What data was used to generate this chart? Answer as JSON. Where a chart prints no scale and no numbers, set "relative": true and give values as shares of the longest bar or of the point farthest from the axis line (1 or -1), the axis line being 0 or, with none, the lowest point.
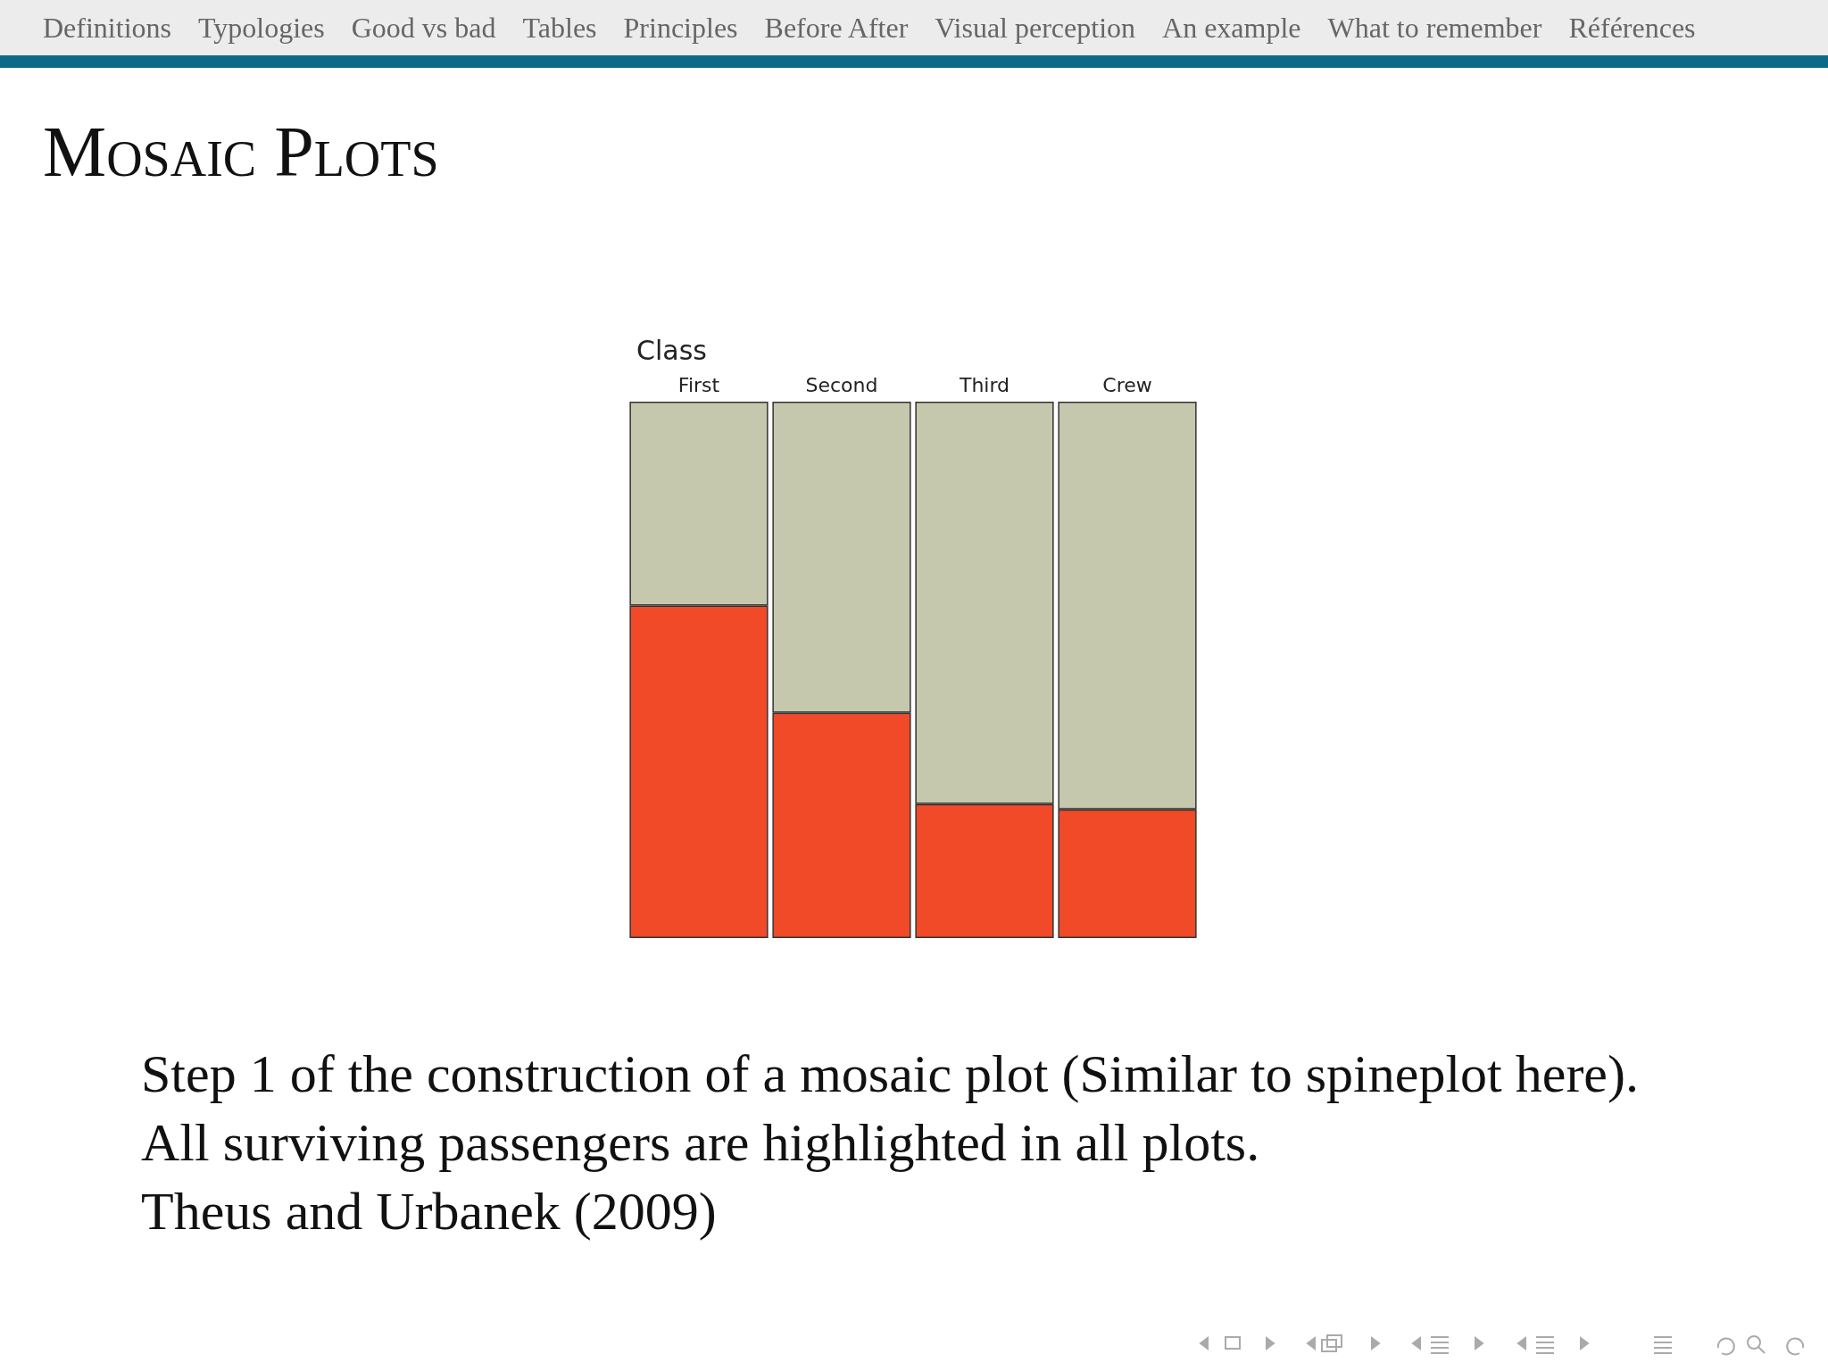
{
  "chart_data": {
    "type": "bar",
    "title": "Mosaic Plots",
    "xlabel": "Class",
    "categories": [
      "First",
      "Second",
      "Third",
      "Crew"
    ],
    "stacked": true,
    "relative": true,
    "series": [
      {
        "color": "#f04a28",
        "values": [
          0.62,
          0.42,
          0.25,
          0.24
        ]
      },
      {
        "color": "#c5c8ad",
        "values": [
          0.38,
          0.58,
          0.75,
          0.76
        ]
      }
    ],
    "annotations": [
      "Definitions",
      "Typologies",
      "Good vs bad",
      "Tables",
      "Principles",
      "Before After",
      "Visual perception",
      "An example",
      "What to remember",
      "Références",
      "Step 1 of the construction of a mosaic plot (Similar to spineplot here). All surviving passengers are highlighted in all plots.",
      "Theus and Urbanek (2009)"
    ]
  }
}
